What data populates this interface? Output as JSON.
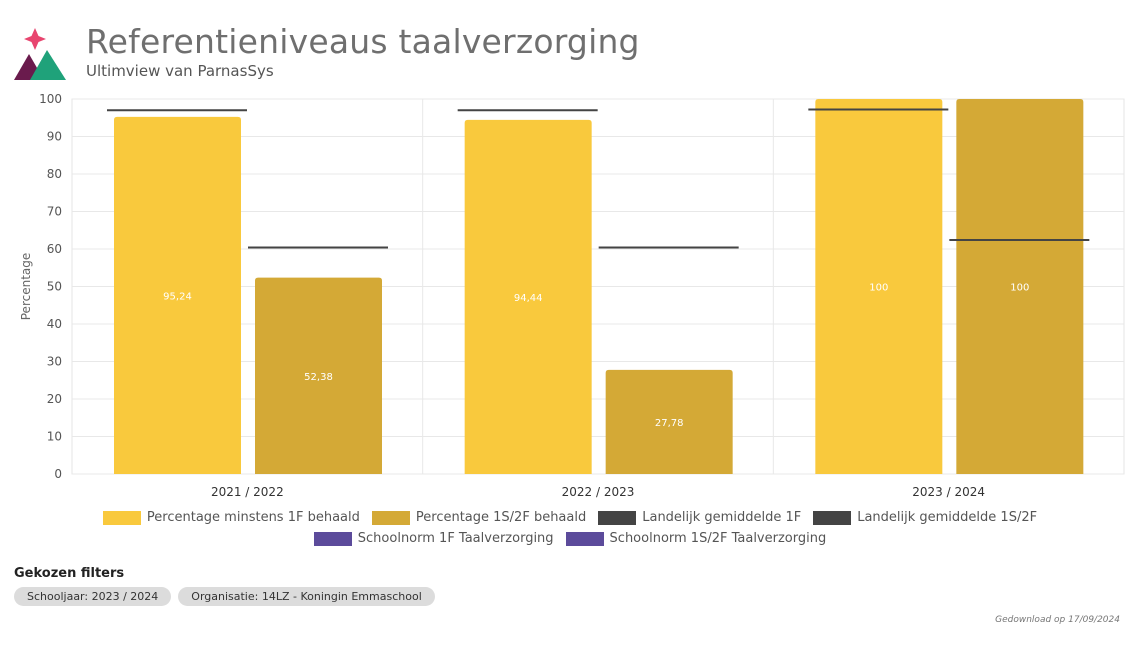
{
  "header": {
    "title": "Referentieniveaus taalverzorging",
    "subtitle": "Ultimview van ParnasSys"
  },
  "colors": {
    "series_1f": "#f9c93d",
    "series_1s2f": "#d4a936",
    "landelijk": "#444444",
    "schoolnorm": "#5c4b9b",
    "logo_pink": "#e8456f",
    "logo_plum": "#6a1b4d",
    "logo_green": "#1fa27a"
  },
  "chart_data": {
    "type": "bar",
    "title": "",
    "ylabel": "Percentage",
    "xlabel": "",
    "ylim": [
      0,
      100
    ],
    "yticks": [
      0,
      10,
      20,
      30,
      40,
      50,
      60,
      70,
      80,
      90,
      100
    ],
    "grid": true,
    "categories": [
      "2021 / 2022",
      "2022 / 2023",
      "2023 / 2024"
    ],
    "series": [
      {
        "name": "Percentage minstens 1F behaald",
        "kind": "bar",
        "values": [
          95.24,
          94.44,
          100
        ],
        "labels": [
          "95,24",
          "94,44",
          "100"
        ]
      },
      {
        "name": "Percentage 1S/2F behaald",
        "kind": "bar",
        "values": [
          52.38,
          27.78,
          100
        ],
        "labels": [
          "52,38",
          "27,78",
          "100"
        ]
      },
      {
        "name": "Landelijk gemiddelde 1F",
        "kind": "line",
        "values": [
          97,
          97,
          97.2
        ]
      },
      {
        "name": "Landelijk gemiddelde 1S/2F",
        "kind": "line",
        "values": [
          60.4,
          60.4,
          62.4
        ]
      }
    ],
    "legend_placement": "bottom"
  },
  "legend": [
    {
      "label": "Percentage minstens 1F behaald",
      "color": "#f9c93d"
    },
    {
      "label": "Percentage 1S/2F behaald",
      "color": "#d4a936"
    },
    {
      "label": "Landelijk gemiddelde 1F",
      "color": "#444444"
    },
    {
      "label": "Landelijk gemiddelde 1S/2F",
      "color": "#444444"
    },
    {
      "label": "Schoolnorm 1F Taalverzorging",
      "color": "#5c4b9b"
    },
    {
      "label": "Schoolnorm 1S/2F Taalverzorging",
      "color": "#5c4b9b"
    }
  ],
  "filters": {
    "title": "Gekozen filters",
    "chips": [
      "Schooljaar: 2023 / 2024",
      "Organisatie: 14LZ - Koningin Emmaschool"
    ]
  },
  "footer": {
    "download": "Gedownload op 17/09/2024"
  }
}
